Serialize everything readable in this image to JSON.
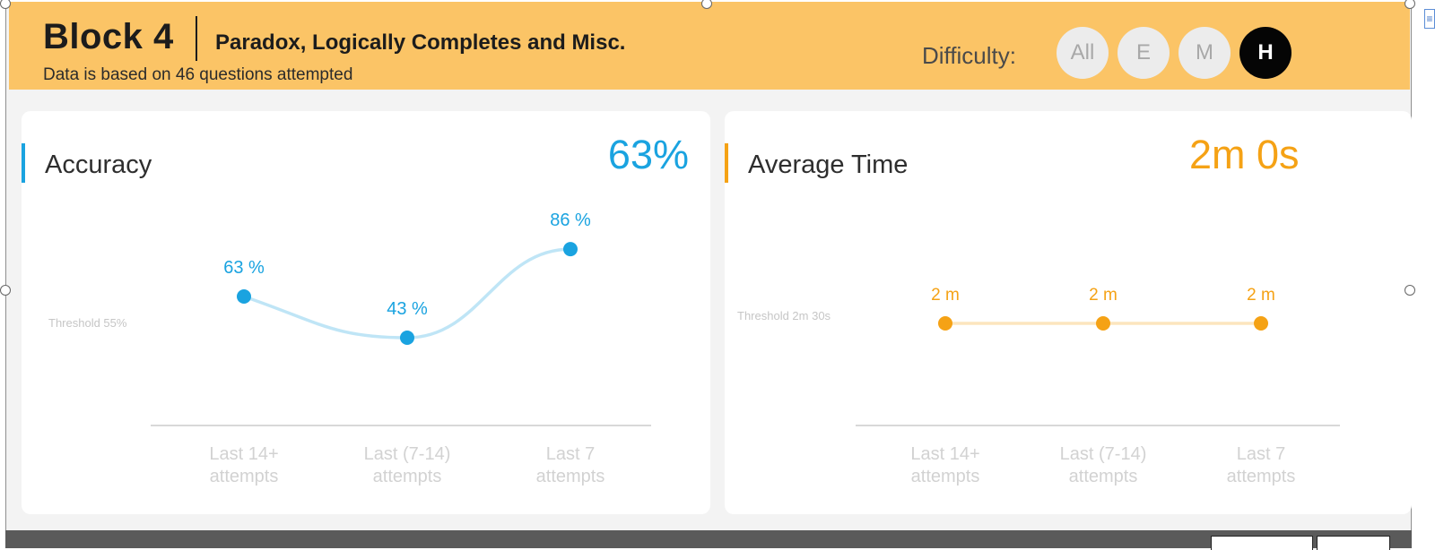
{
  "header": {
    "block_title": "Block 4",
    "block_subtitle": "Paradox, Logically Completes and Misc.",
    "data_note": "Data is based on 46 questions attempted",
    "difficulty_label": "Difficulty:",
    "difficulty_options": [
      "All",
      "E",
      "M",
      "H"
    ],
    "difficulty_selected": "H",
    "accent_color": "#fbc466"
  },
  "accuracy_card": {
    "title": "Accuracy",
    "value": "63%",
    "accent_color": "#1aa3e0",
    "threshold_label": "Threshold 55%",
    "chart_labels": [
      "63 %",
      "43 %",
      "86 %"
    ]
  },
  "time_card": {
    "title": "Average Time",
    "value": "2m 0s",
    "accent_color": "#f5a215",
    "threshold_label": "Threshold 2m 30s",
    "chart_labels": [
      "2 m",
      "2 m",
      "2 m"
    ]
  },
  "chart_data": [
    {
      "type": "line",
      "categories": [
        "Last 14+ attempts",
        "Last (7-14) attempts",
        "Last 7 attempts"
      ],
      "series": [
        {
          "values": [
            63,
            43,
            86
          ]
        }
      ],
      "unit": "%",
      "threshold": 55,
      "color": "#1aa3e0",
      "grid": false
    },
    {
      "type": "line",
      "categories": [
        "Last 14+ attempts",
        "Last (7-14) attempts",
        "Last 7 attempts"
      ],
      "series": [
        {
          "values": [
            2,
            2,
            2
          ]
        }
      ],
      "unit": "m",
      "threshold": 2.5,
      "color": "#f5a215",
      "grid": false
    }
  ]
}
